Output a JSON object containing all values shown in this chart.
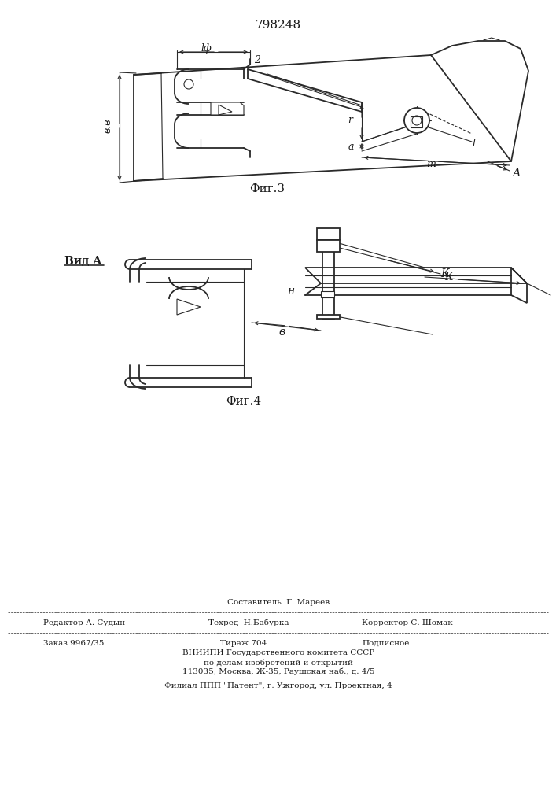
{
  "patent_number": "798248",
  "fig3_label": "Фиг.3",
  "fig4_label": "Фиг.4",
  "view_label": "Вид А",
  "footer": {
    "line1_center": "Составитель  Г. Мареев",
    "line2_left": "Редактор А. Судын",
    "line2_center": "Техред  Н.Бабурка",
    "line2_right": "Корректор С. Шомак",
    "line3_left": "Заказ 9967/35",
    "line3_center": "Тираж 704",
    "line3_right": "Подписное",
    "line4": "ВНИИПИ Государственного комитета СССР",
    "line5": "по делам изобретений и открытий",
    "line6": "113035, Москва, Ж-35, Раушская наб., д. 4/5",
    "line7": "Филиал ППП \"Патент\", г. Ужгород, ул. Проектная, 4"
  },
  "bg_color": "#ffffff",
  "line_color": "#2a2a2a",
  "text_color": "#1a1a1a"
}
